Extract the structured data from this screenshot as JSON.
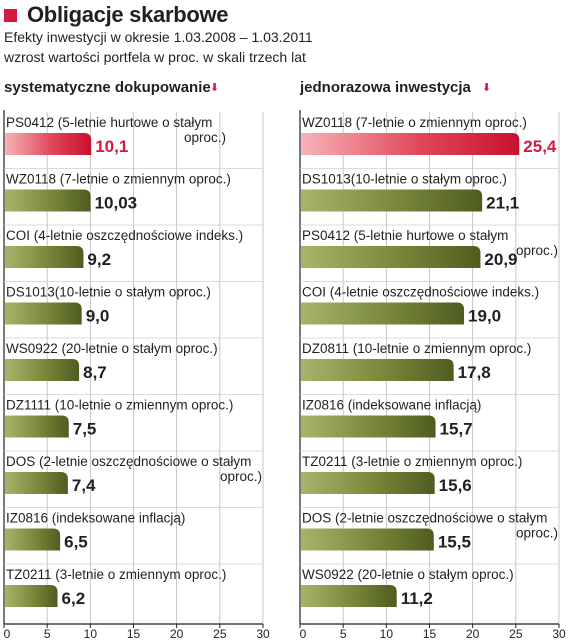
{
  "title": "Obligacje skarbowe",
  "subtitle_1": "Efekty inwestycji w okresie 1.03.2008 – 1.03.2011",
  "subtitle_2": "wzrost wartości portfela w proc. w skali trzech lat",
  "colors": {
    "highlight": "#d7193f",
    "bar": "#6b7a2f",
    "bar_light": "#a7b56a"
  },
  "chart_data": [
    {
      "type": "bar",
      "orientation": "horizontal",
      "title": "systematyczne dokupowanie",
      "xlim": [
        0,
        30
      ],
      "xticks": [
        "0",
        "5",
        "10",
        "15",
        "20",
        "25",
        "30"
      ],
      "grid": true,
      "bars": [
        {
          "label_1": "PS0412 (5-letnie hurtowe o stałym",
          "label_2": "oproc.)",
          "value": 10.1,
          "value_label": "10,1",
          "highlight": true
        },
        {
          "label_1": "WZ0118 (7-letnie o zmiennym oproc.)",
          "label_2": "",
          "value": 10.03,
          "value_label": "10,03",
          "highlight": false
        },
        {
          "label_1": "COI (4-letnie oszczędnościowe indeks.)",
          "label_2": "",
          "value": 9.2,
          "value_label": "9,2",
          "highlight": false
        },
        {
          "label_1": "DS1013(10-letnie o stałym oproc.)",
          "label_2": "",
          "value": 9.0,
          "value_label": "9,0",
          "highlight": false
        },
        {
          "label_1": "WS0922 (20-letnie o stałym oproc.)",
          "label_2": "",
          "value": 8.7,
          "value_label": "8,7",
          "highlight": false
        },
        {
          "label_1": "DZ1111 (10-letnie o zmiennym oproc.)",
          "label_2": "",
          "value": 7.5,
          "value_label": "7,5",
          "highlight": false
        },
        {
          "label_1": "DOS (2-letnie oszczędnościowe o stałym",
          "label_2": "oproc.)",
          "value": 7.4,
          "value_label": "7,4",
          "highlight": false
        },
        {
          "label_1": "IZ0816   (indeksowane inflacją)",
          "label_2": "",
          "value": 6.5,
          "value_label": "6,5",
          "highlight": false
        },
        {
          "label_1": "TZ0211 (3-letnie o zmiennym oproc.)",
          "label_2": "",
          "value": 6.2,
          "value_label": "6,2",
          "highlight": false
        }
      ]
    },
    {
      "type": "bar",
      "orientation": "horizontal",
      "title": "jednorazowa inwestycja",
      "xlim": [
        0,
        30
      ],
      "xticks": [
        "0",
        "5",
        "10",
        "15",
        "20",
        "25",
        "30"
      ],
      "grid": true,
      "bars": [
        {
          "label_1": "WZ0118 (7-letnie o zmiennym oproc.)",
          "label_2": "",
          "value": 25.4,
          "value_label": "25,4",
          "highlight": true
        },
        {
          "label_1": "DS1013(10-letnie o stałym oproc.)",
          "label_2": "",
          "value": 21.1,
          "value_label": "21,1",
          "highlight": false
        },
        {
          "label_1": "PS0412 (5-letnie hurtowe o stałym",
          "label_2": "oproc.)",
          "value": 20.9,
          "value_label": "20,9",
          "highlight": false
        },
        {
          "label_1": "COI (4-letnie oszczędnościowe indeks.)",
          "label_2": "",
          "value": 19.0,
          "value_label": "19,0",
          "highlight": false
        },
        {
          "label_1": "DZ0811 (10-letnie o zmiennym oproc.)",
          "label_2": "",
          "value": 17.8,
          "value_label": "17,8",
          "highlight": false
        },
        {
          "label_1": "IZ0816   (indeksowane inflacją)",
          "label_2": "",
          "value": 15.7,
          "value_label": "15,7",
          "highlight": false
        },
        {
          "label_1": "TZ0211 (3-letnie o zmiennym oproc.)",
          "label_2": "",
          "value": 15.6,
          "value_label": "15,6",
          "highlight": false
        },
        {
          "label_1": "DOS (2-letnie oszczędnościowe o stałym",
          "label_2": "oproc.)",
          "value": 15.5,
          "value_label": "15,5",
          "highlight": false
        },
        {
          "label_1": "WS0922 (20-letnie o stałym oproc.)",
          "label_2": "",
          "value": 11.2,
          "value_label": "11,2",
          "highlight": false
        }
      ]
    }
  ]
}
